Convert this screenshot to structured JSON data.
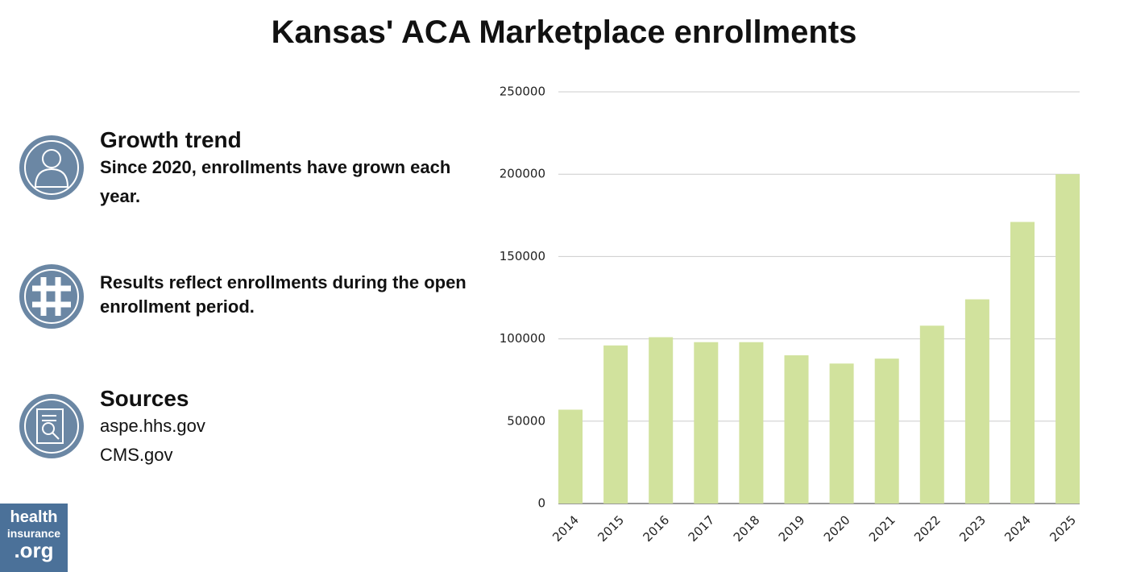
{
  "chart_data": {
    "type": "bar",
    "title": "Kansas' ACA Marketplace enrollments",
    "categories": [
      "2014",
      "2015",
      "2016",
      "2017",
      "2018",
      "2019",
      "2020",
      "2021",
      "2022",
      "2023",
      "2024",
      "2025"
    ],
    "values": [
      57000,
      96000,
      101000,
      98000,
      98000,
      90000,
      85000,
      88000,
      108000,
      124000,
      171000,
      200000
    ],
    "color": "#d1e29d",
    "ylim": [
      0,
      250000
    ],
    "yticks": [
      0,
      50000,
      100000,
      150000,
      200000,
      250000
    ],
    "grid": true
  },
  "info": [
    {
      "heading": "Growth trend",
      "text": "Since 2020, enrollments have grown each year."
    },
    {
      "text": "Results reflect enrollments during the open enrollment period."
    },
    {
      "heading": "Sources",
      "lines": [
        "aspe.hhs.gov",
        "CMS.gov"
      ]
    }
  ],
  "logo": [
    "health",
    "insurance",
    ".org"
  ]
}
